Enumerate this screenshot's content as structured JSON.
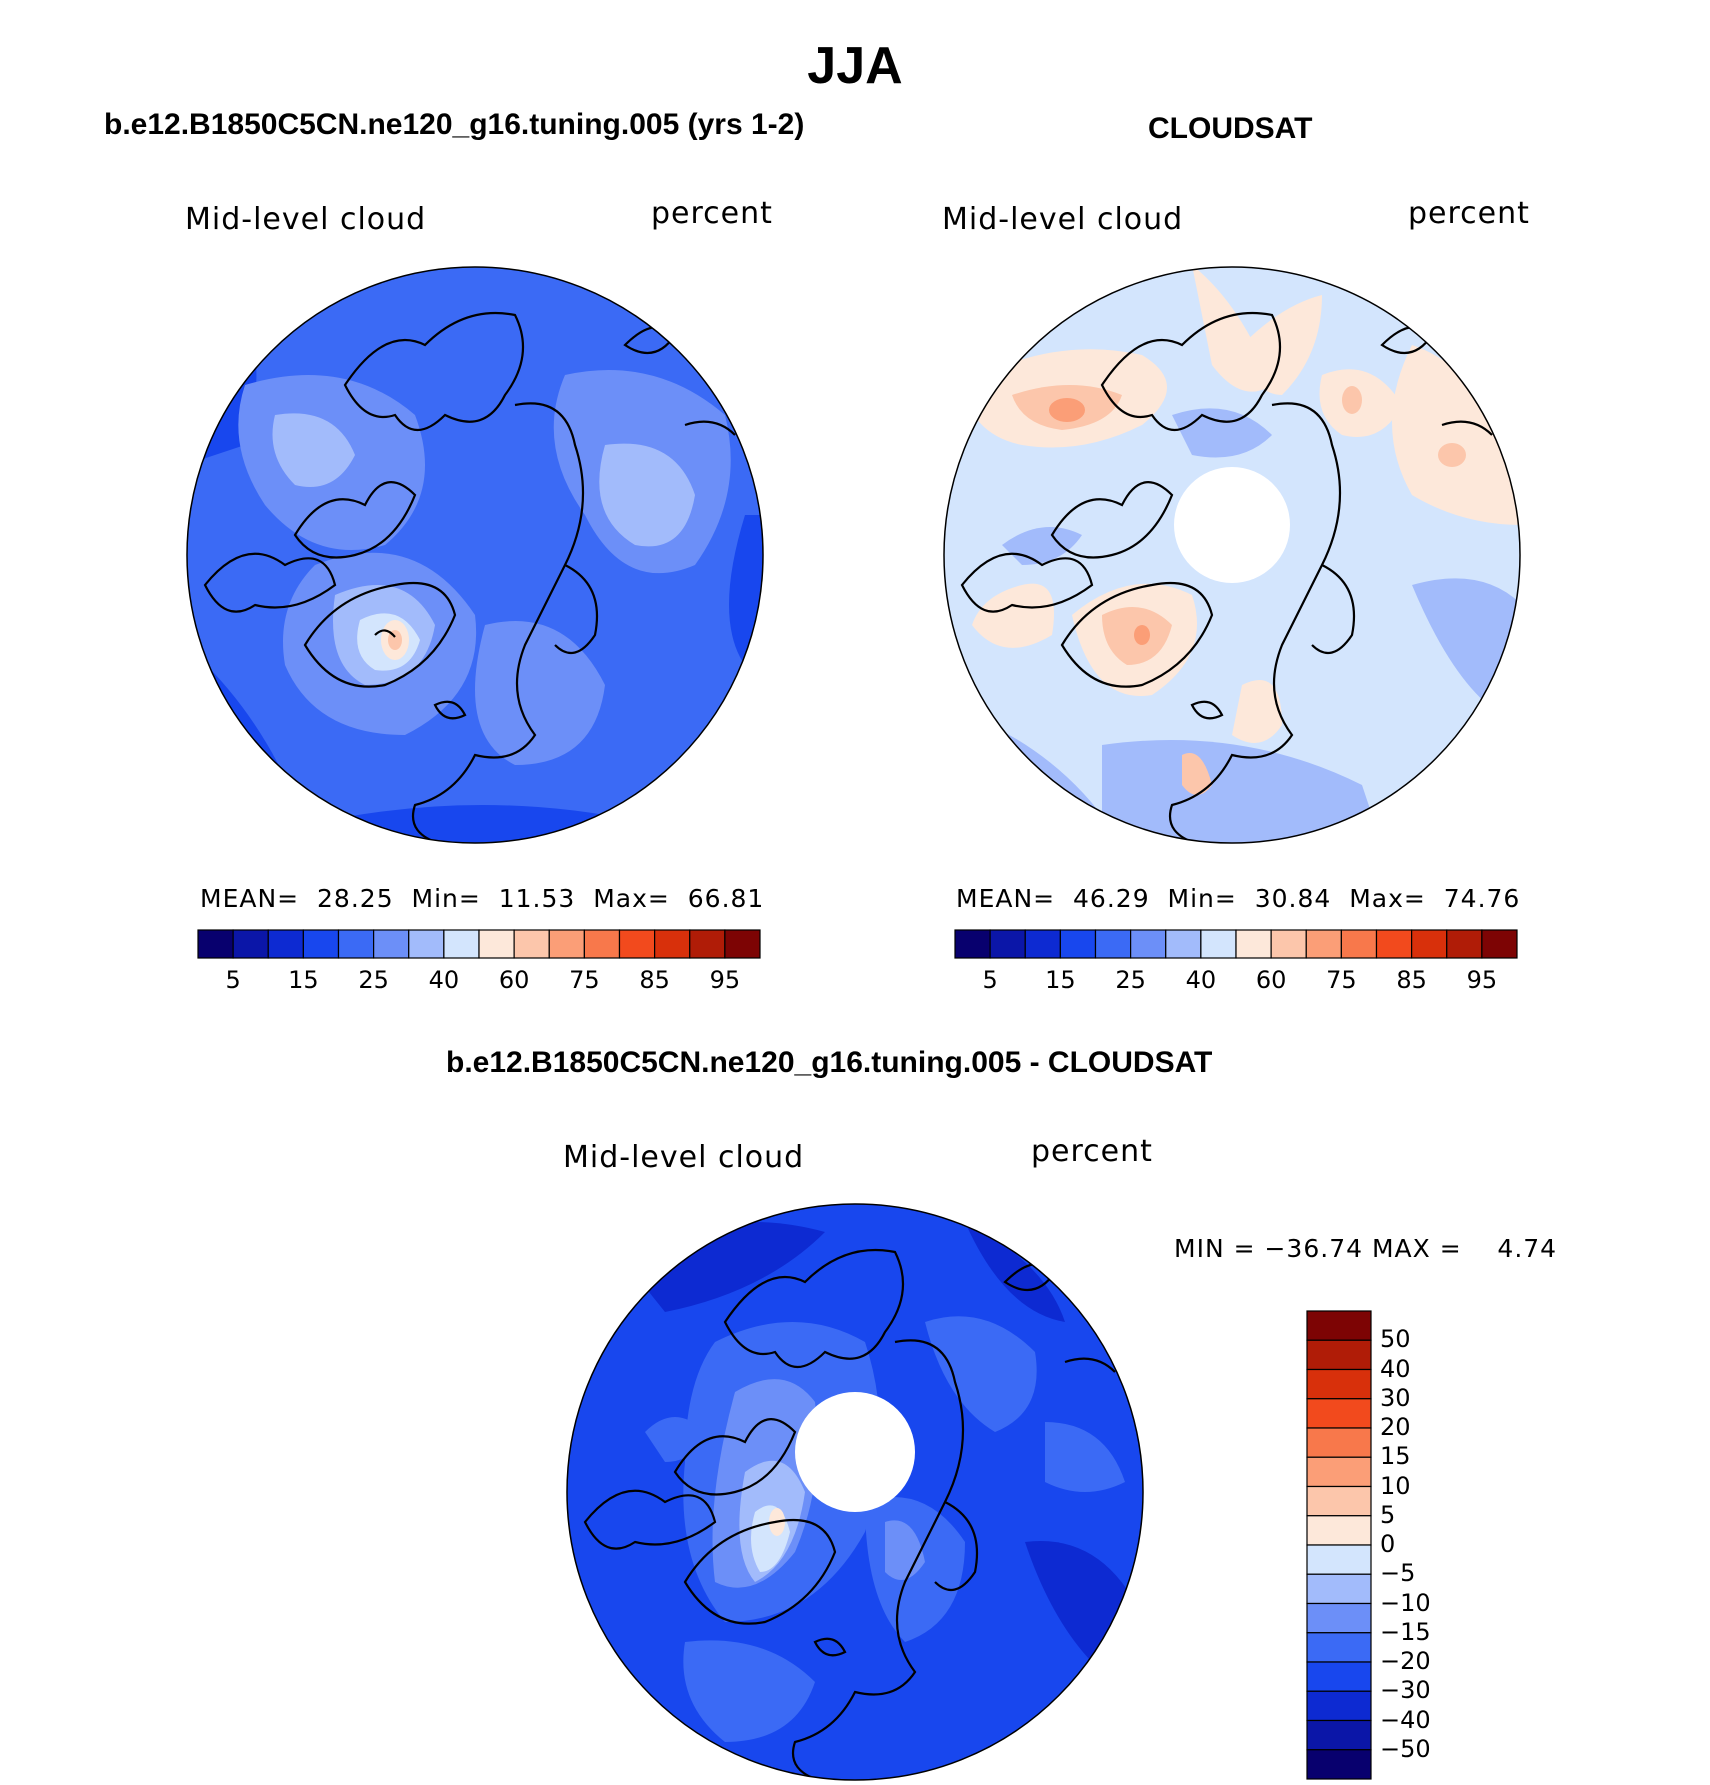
{
  "title": "JJA",
  "panels": [
    {
      "id": "model",
      "title": "b.e12.B1850C5CN.ne120_g16.tuning.005 (yrs 1-2)",
      "variable": "Mid-level cloud",
      "units": "percent",
      "stats": {
        "mean_label": "MEAN=",
        "mean": "28.25",
        "min_label": "Min=",
        "min": "11.53",
        "max_label": "Max=",
        "max": "66.81"
      }
    },
    {
      "id": "obs",
      "title": "CLOUDSAT",
      "variable": "Mid-level cloud",
      "units": "percent",
      "stats": {
        "mean_label": "MEAN=",
        "mean": "46.29",
        "min_label": "Min=",
        "min": "30.84",
        "max_label": "Max=",
        "max": "74.76"
      }
    },
    {
      "id": "diff",
      "title": "b.e12.B1850C5CN.ne120_g16.tuning.005 - CLOUDSAT",
      "variable": "Mid-level cloud",
      "units": "percent",
      "minmax_text": "MIN = −36.74 MAX =    4.74"
    }
  ],
  "colorbar_abs": {
    "ticks": [
      "5",
      "15",
      "25",
      "40",
      "60",
      "75",
      "85",
      "95"
    ],
    "colors": [
      "#08006e",
      "#0b16a8",
      "#0d2ad2",
      "#1847ee",
      "#3b6af5",
      "#6c8ff8",
      "#a2bbfb",
      "#d3e5fd",
      "#fde8da",
      "#fcc6ab",
      "#fb9e77",
      "#f8784b",
      "#f24a1d",
      "#d8300b",
      "#b01c07",
      "#7d0404"
    ]
  },
  "colorbar_diff": {
    "ticks": [
      "50",
      "40",
      "30",
      "20",
      "15",
      "10",
      "5",
      "0",
      "−5",
      "−10",
      "−15",
      "−20",
      "−30",
      "−40",
      "−50"
    ],
    "colors": [
      "#7d0404",
      "#b01c07",
      "#d8300b",
      "#f24a1d",
      "#f8784b",
      "#fb9e77",
      "#fcc6ab",
      "#fde8da",
      "#d3e5fd",
      "#a2bbfb",
      "#6c8ff8",
      "#3b6af5",
      "#1847ee",
      "#0d2ad2",
      "#0b16a8",
      "#08006e"
    ]
  },
  "chart_data": [
    {
      "type": "heatmap",
      "projection": "north polar stereographic",
      "title": "b.e12.B1850C5CN.ne120_g16.tuning.005 (yrs 1-2)",
      "field": "Mid-level cloud",
      "units": "percent",
      "levels": [
        5,
        10,
        15,
        20,
        25,
        30,
        40,
        50,
        60,
        70,
        75,
        80,
        85,
        90,
        95
      ],
      "mean": 28.25,
      "min": 11.53,
      "max": 66.81
    },
    {
      "type": "heatmap",
      "projection": "north polar stereographic",
      "title": "CLOUDSAT",
      "field": "Mid-level cloud",
      "units": "percent",
      "levels": [
        5,
        10,
        15,
        20,
        25,
        30,
        40,
        50,
        60,
        70,
        75,
        80,
        85,
        90,
        95
      ],
      "mean": 46.29,
      "min": 30.84,
      "max": 74.76
    },
    {
      "type": "heatmap",
      "projection": "north polar stereographic",
      "title": "b.e12.B1850C5CN.ne120_g16.tuning.005 - CLOUDSAT",
      "field": "Mid-level cloud",
      "units": "percent",
      "levels": [
        -50,
        -40,
        -30,
        -20,
        -15,
        -10,
        -5,
        0,
        5,
        10,
        15,
        20,
        30,
        40,
        50
      ],
      "min": -36.74,
      "max": 4.74
    }
  ]
}
